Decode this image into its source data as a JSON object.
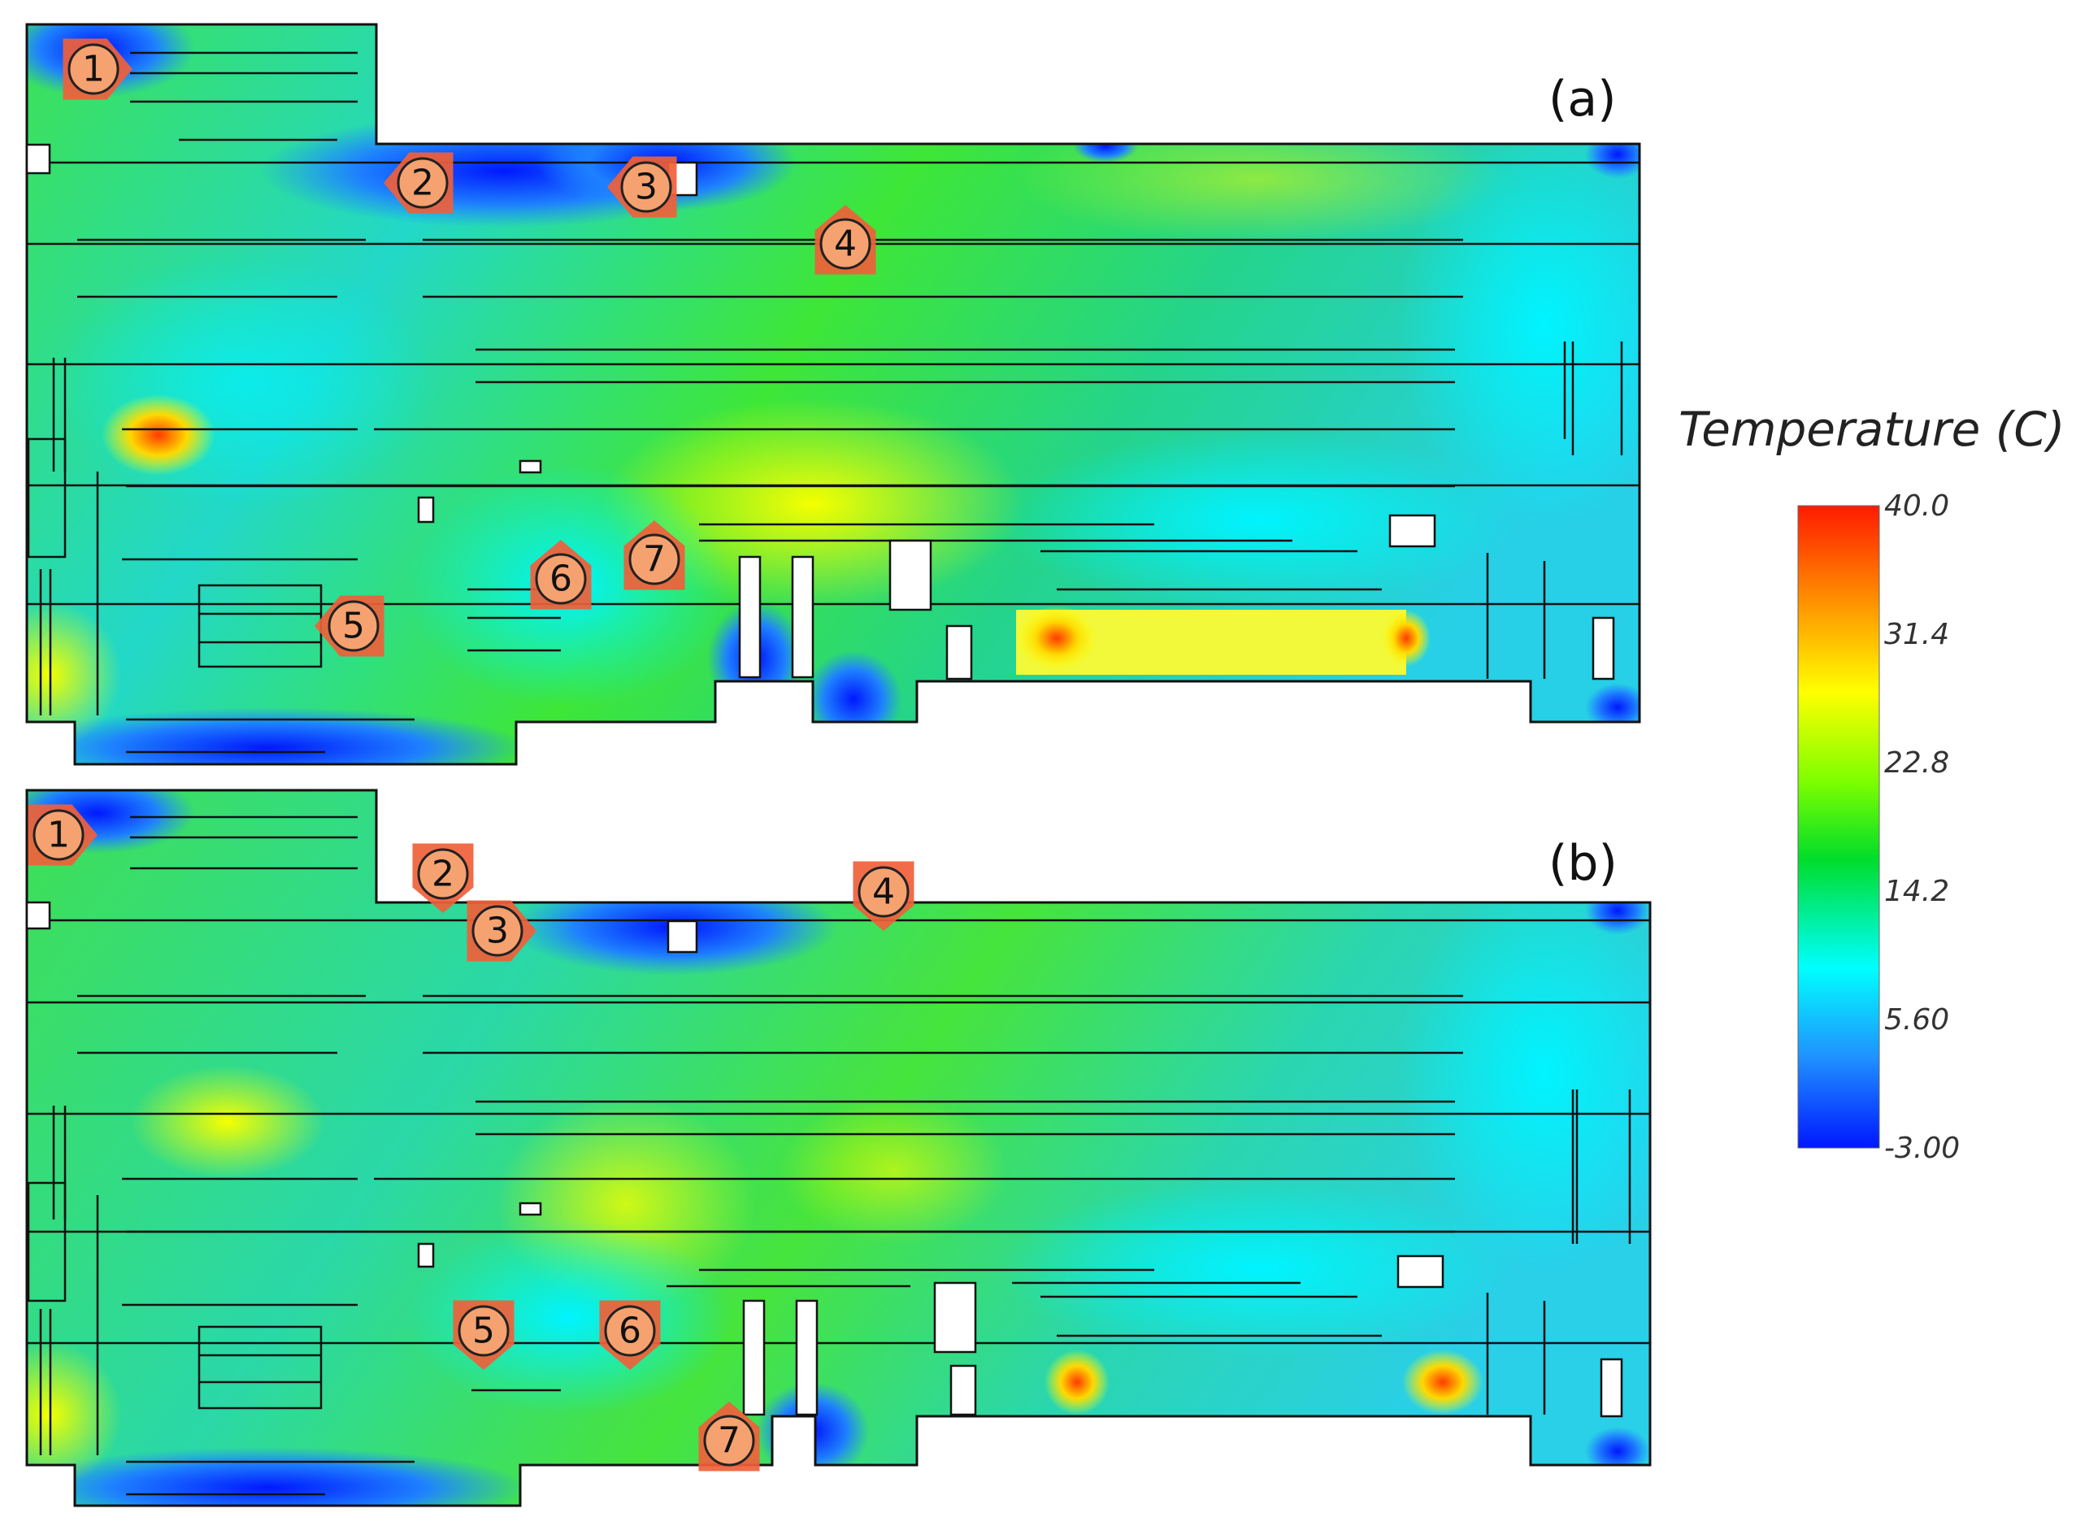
{
  "figure": {
    "panels": [
      {
        "id": "a",
        "label": "(a)",
        "markers": [
          {
            "num": "1",
            "dir": "right"
          },
          {
            "num": "2",
            "dir": "left"
          },
          {
            "num": "3",
            "dir": "left"
          },
          {
            "num": "4",
            "dir": "up"
          },
          {
            "num": "5",
            "dir": "left"
          },
          {
            "num": "6",
            "dir": "up"
          },
          {
            "num": "7",
            "dir": "up"
          }
        ]
      },
      {
        "id": "b",
        "label": "(b)",
        "markers": [
          {
            "num": "1",
            "dir": "right"
          },
          {
            "num": "2",
            "dir": "down"
          },
          {
            "num": "3",
            "dir": "right"
          },
          {
            "num": "4",
            "dir": "down"
          },
          {
            "num": "5",
            "dir": "down"
          },
          {
            "num": "6",
            "dir": "down"
          },
          {
            "num": "7",
            "dir": "up"
          }
        ]
      }
    ]
  },
  "colorbar": {
    "title": "Temperature (C)",
    "ticks": [
      "40.0",
      "31.4",
      "22.8",
      "14.2",
      "5.60",
      "-3.00"
    ],
    "min": -3.0,
    "max": 40.0,
    "colors": [
      "#ff1a00",
      "#ff8a00",
      "#ffff00",
      "#7dff00",
      "#00dd2a",
      "#00ffff",
      "#2090ff",
      "#0018ff"
    ]
  }
}
